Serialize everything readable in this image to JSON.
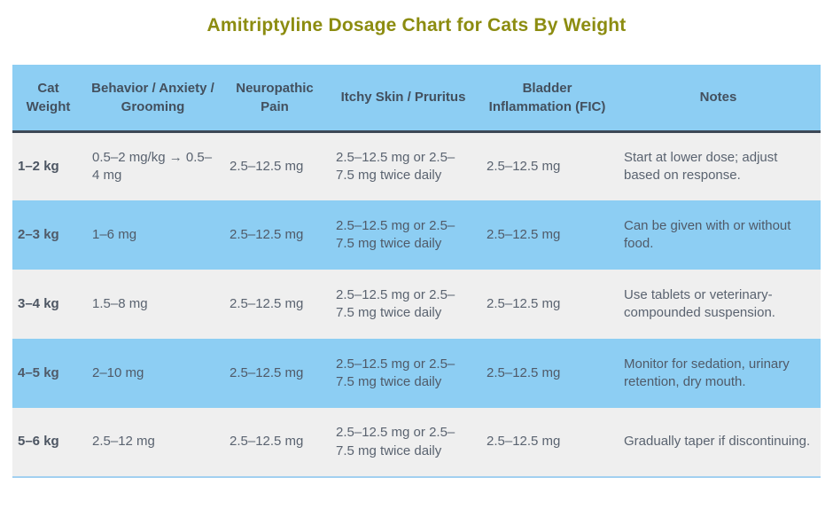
{
  "title": "Amitriptyline Dosage Chart for Cats By Weight",
  "colors": {
    "title_text": "#8c8c10",
    "header_bg": "#8dcef3",
    "row_alt_bg": "#efefef",
    "row_blue_bg": "#8dcef3",
    "header_text": "#43505e",
    "body_text": "#5a6370",
    "header_divider": "#3d4856",
    "table_bottom_border": "#a2d0f0"
  },
  "chart_data": {
    "type": "table",
    "title": "Amitriptyline Dosage Chart for Cats By Weight",
    "columns": [
      "Cat Weight",
      "Behavior / Anxiety / Grooming",
      "Neuropathic Pain",
      "Itchy Skin / Pruritus",
      "Bladder Inflammation (FIC)",
      "Notes"
    ],
    "rows": [
      [
        "1–2 kg",
        "0.5–2 mg/kg → 0.5–4 mg",
        "2.5–12.5 mg",
        "2.5–12.5 mg or 2.5–7.5 mg twice daily",
        "2.5–12.5 mg",
        "Start at lower dose; adjust based on response."
      ],
      [
        "2–3 kg",
        "1–6 mg",
        "2.5–12.5 mg",
        "2.5–12.5 mg or 2.5–7.5 mg twice daily",
        "2.5–12.5 mg",
        "Can be given with or without food."
      ],
      [
        "3–4 kg",
        "1.5–8 mg",
        "2.5–12.5 mg",
        "2.5–12.5 mg or 2.5–7.5 mg twice daily",
        "2.5–12.5 mg",
        "Use tablets or veterinary-compounded suspension."
      ],
      [
        "4–5 kg",
        "2–10 mg",
        "2.5–12.5 mg",
        "2.5–12.5 mg or 2.5–7.5 mg twice daily",
        "2.5–12.5 mg",
        "Monitor for sedation, urinary retention, dry mouth."
      ],
      [
        "5–6 kg",
        "2.5–12 mg",
        "2.5–12.5 mg",
        "2.5–12.5 mg or 2.5–7.5 mg twice daily",
        "2.5–12.5 mg",
        "Gradually taper if discontinuing."
      ]
    ]
  }
}
